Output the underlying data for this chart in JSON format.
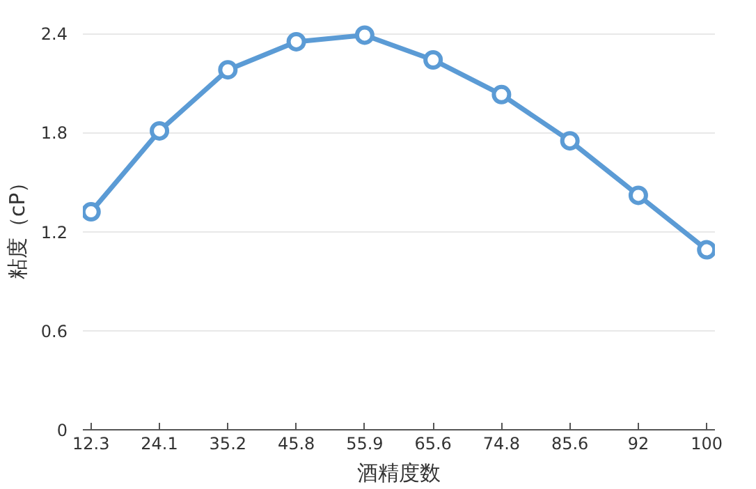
{
  "chart_data": {
    "type": "line",
    "xlabel": "酒精度数",
    "ylabel": "粘度（cP）",
    "categories": [
      "12.3",
      "24.1",
      "35.2",
      "45.8",
      "55.9",
      "65.6",
      "74.8",
      "85.6",
      "92",
      "100"
    ],
    "series": [
      {
        "color": "#5b9bd5",
        "values": [
          1.32,
          1.81,
          2.18,
          2.35,
          2.39,
          2.24,
          2.03,
          1.75,
          1.42,
          1.09
        ]
      }
    ],
    "ylim": [
      0,
      2.4
    ],
    "yticks": [
      0,
      0.6,
      1.2,
      1.8,
      2.4
    ],
    "grid": "y",
    "marker": "circle",
    "line_style": "solid"
  }
}
